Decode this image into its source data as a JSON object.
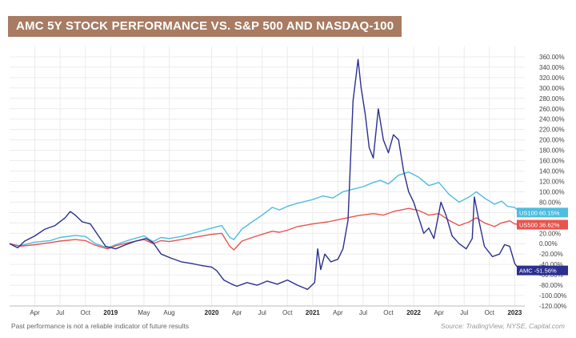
{
  "header": {
    "title": "AMC 5Y STOCK PERFORMANCE VS. S&P 500 AND NASDAQ-100"
  },
  "footer": {
    "disclaimer": "Past performance is not a reliable indicator of future results",
    "source": "Source: TradingView, NYSE, Capital.com"
  },
  "chart_data": {
    "type": "line",
    "title": "AMC 5Y STOCK PERFORMANCE VS. S&P 500 AND NASDAQ-100",
    "ylim": [
      -120,
      380
    ],
    "xlim": [
      2018.0,
      2023.1
    ],
    "y_ticks": [
      "360.00%",
      "340.00%",
      "320.00%",
      "300.00%",
      "280.00%",
      "260.00%",
      "240.00%",
      "220.00%",
      "200.00%",
      "180.00%",
      "160.00%",
      "140.00%",
      "120.00%",
      "100.00%",
      "80.00%",
      "60.00%",
      "40.00%",
      "20.00%",
      "0.00%",
      "-20.00%",
      "-40.00%",
      "-60.00%",
      "-80.00%",
      "-100.00%",
      "-120.00%"
    ],
    "y_tick_values": [
      360,
      340,
      320,
      300,
      280,
      260,
      240,
      220,
      200,
      180,
      160,
      140,
      120,
      100,
      80,
      60,
      40,
      20,
      0,
      -20,
      -40,
      -60,
      -80,
      -100,
      -120
    ],
    "x_ticks": [
      {
        "label": "Apr",
        "t": 2018.25,
        "bold": false
      },
      {
        "label": "Jul",
        "t": 2018.5,
        "bold": false
      },
      {
        "label": "Oct",
        "t": 2018.75,
        "bold": false
      },
      {
        "label": "2019",
        "t": 2019.0,
        "bold": true
      },
      {
        "label": "May",
        "t": 2019.33,
        "bold": false
      },
      {
        "label": "Aug",
        "t": 2019.58,
        "bold": false
      },
      {
        "label": "2020",
        "t": 2020.0,
        "bold": true
      },
      {
        "label": "Apr",
        "t": 2020.25,
        "bold": false
      },
      {
        "label": "Jul",
        "t": 2020.5,
        "bold": false
      },
      {
        "label": "Oct",
        "t": 2020.75,
        "bold": false
      },
      {
        "label": "2021",
        "t": 2021.0,
        "bold": true
      },
      {
        "label": "Apr",
        "t": 2021.25,
        "bold": false
      },
      {
        "label": "Jul",
        "t": 2021.5,
        "bold": false
      },
      {
        "label": "Oct",
        "t": 2021.75,
        "bold": false
      },
      {
        "label": "2022",
        "t": 2022.0,
        "bold": true
      },
      {
        "label": "Apr",
        "t": 2022.25,
        "bold": false
      },
      {
        "label": "Jul",
        "t": 2022.5,
        "bold": false
      },
      {
        "label": "Oct",
        "t": 2022.75,
        "bold": false
      },
      {
        "label": "2023",
        "t": 2023.0,
        "bold": true
      }
    ],
    "grid": true,
    "series": [
      {
        "name": "US100",
        "end_label": "US100 60.15%",
        "color": "#4dbde0",
        "points": [
          [
            2018.0,
            0
          ],
          [
            2018.1,
            -4
          ],
          [
            2018.25,
            3
          ],
          [
            2018.4,
            6
          ],
          [
            2018.5,
            12
          ],
          [
            2018.65,
            16
          ],
          [
            2018.75,
            14
          ],
          [
            2018.85,
            0
          ],
          [
            2018.97,
            -8
          ],
          [
            2019.05,
            -2
          ],
          [
            2019.2,
            8
          ],
          [
            2019.33,
            15
          ],
          [
            2019.42,
            4
          ],
          [
            2019.5,
            12
          ],
          [
            2019.58,
            10
          ],
          [
            2019.7,
            14
          ],
          [
            2019.85,
            22
          ],
          [
            2020.0,
            30
          ],
          [
            2020.1,
            35
          ],
          [
            2020.18,
            12
          ],
          [
            2020.22,
            8
          ],
          [
            2020.3,
            28
          ],
          [
            2020.4,
            42
          ],
          [
            2020.5,
            55
          ],
          [
            2020.6,
            70
          ],
          [
            2020.67,
            65
          ],
          [
            2020.75,
            72
          ],
          [
            2020.85,
            78
          ],
          [
            2021.0,
            85
          ],
          [
            2021.1,
            92
          ],
          [
            2021.2,
            88
          ],
          [
            2021.3,
            100
          ],
          [
            2021.4,
            105
          ],
          [
            2021.5,
            110
          ],
          [
            2021.6,
            118
          ],
          [
            2021.67,
            122
          ],
          [
            2021.75,
            115
          ],
          [
            2021.85,
            132
          ],
          [
            2021.95,
            138
          ],
          [
            2022.05,
            128
          ],
          [
            2022.15,
            112
          ],
          [
            2022.25,
            118
          ],
          [
            2022.35,
            95
          ],
          [
            2022.45,
            80
          ],
          [
            2022.55,
            90
          ],
          [
            2022.62,
            100
          ],
          [
            2022.7,
            88
          ],
          [
            2022.8,
            76
          ],
          [
            2022.87,
            82
          ],
          [
            2022.93,
            72
          ],
          [
            2023.0,
            70
          ],
          [
            2023.05,
            60
          ]
        ]
      },
      {
        "name": "US500",
        "end_label": "US500 36.62%",
        "color": "#e8544f",
        "points": [
          [
            2018.0,
            0
          ],
          [
            2018.1,
            -5
          ],
          [
            2018.25,
            -2
          ],
          [
            2018.4,
            2
          ],
          [
            2018.5,
            5
          ],
          [
            2018.65,
            8
          ],
          [
            2018.75,
            6
          ],
          [
            2018.85,
            -3
          ],
          [
            2018.97,
            -10
          ],
          [
            2019.05,
            -4
          ],
          [
            2019.2,
            3
          ],
          [
            2019.33,
            8
          ],
          [
            2019.42,
            0
          ],
          [
            2019.5,
            6
          ],
          [
            2019.58,
            4
          ],
          [
            2019.7,
            8
          ],
          [
            2019.85,
            13
          ],
          [
            2020.0,
            18
          ],
          [
            2020.1,
            20
          ],
          [
            2020.18,
            -5
          ],
          [
            2020.22,
            -12
          ],
          [
            2020.3,
            5
          ],
          [
            2020.4,
            12
          ],
          [
            2020.5,
            18
          ],
          [
            2020.6,
            24
          ],
          [
            2020.67,
            22
          ],
          [
            2020.75,
            26
          ],
          [
            2020.85,
            33
          ],
          [
            2021.0,
            38
          ],
          [
            2021.15,
            42
          ],
          [
            2021.3,
            48
          ],
          [
            2021.45,
            54
          ],
          [
            2021.6,
            58
          ],
          [
            2021.7,
            55
          ],
          [
            2021.8,
            62
          ],
          [
            2021.95,
            68
          ],
          [
            2022.05,
            64
          ],
          [
            2022.15,
            55
          ],
          [
            2022.25,
            58
          ],
          [
            2022.35,
            45
          ],
          [
            2022.45,
            35
          ],
          [
            2022.55,
            42
          ],
          [
            2022.62,
            50
          ],
          [
            2022.7,
            40
          ],
          [
            2022.8,
            33
          ],
          [
            2022.87,
            40
          ],
          [
            2022.95,
            44
          ],
          [
            2023.0,
            38
          ],
          [
            2023.05,
            36.6
          ]
        ]
      },
      {
        "name": "AMC",
        "end_label": "AMC -51.56%",
        "color": "#2b2f8f",
        "points": [
          [
            2018.0,
            0
          ],
          [
            2018.08,
            -8
          ],
          [
            2018.15,
            5
          ],
          [
            2018.25,
            15
          ],
          [
            2018.35,
            28
          ],
          [
            2018.45,
            35
          ],
          [
            2018.55,
            50
          ],
          [
            2018.6,
            62
          ],
          [
            2018.65,
            55
          ],
          [
            2018.72,
            42
          ],
          [
            2018.8,
            38
          ],
          [
            2018.88,
            15
          ],
          [
            2018.95,
            -5
          ],
          [
            2019.05,
            -10
          ],
          [
            2019.15,
            -2
          ],
          [
            2019.25,
            5
          ],
          [
            2019.35,
            10
          ],
          [
            2019.42,
            2
          ],
          [
            2019.5,
            -20
          ],
          [
            2019.6,
            -28
          ],
          [
            2019.7,
            -35
          ],
          [
            2019.8,
            -38
          ],
          [
            2019.9,
            -42
          ],
          [
            2020.0,
            -45
          ],
          [
            2020.05,
            -52
          ],
          [
            2020.12,
            -70
          ],
          [
            2020.2,
            -78
          ],
          [
            2020.25,
            -82
          ],
          [
            2020.35,
            -75
          ],
          [
            2020.45,
            -80
          ],
          [
            2020.55,
            -72
          ],
          [
            2020.65,
            -78
          ],
          [
            2020.75,
            -70
          ],
          [
            2020.85,
            -80
          ],
          [
            2020.95,
            -88
          ],
          [
            2021.02,
            -75
          ],
          [
            2021.05,
            -10
          ],
          [
            2021.08,
            -50
          ],
          [
            2021.12,
            -20
          ],
          [
            2021.18,
            -35
          ],
          [
            2021.25,
            -30
          ],
          [
            2021.3,
            -10
          ],
          [
            2021.35,
            45
          ],
          [
            2021.4,
            275
          ],
          [
            2021.45,
            355
          ],
          [
            2021.48,
            300
          ],
          [
            2021.52,
            250
          ],
          [
            2021.56,
            185
          ],
          [
            2021.6,
            165
          ],
          [
            2021.65,
            260
          ],
          [
            2021.7,
            200
          ],
          [
            2021.75,
            175
          ],
          [
            2021.8,
            210
          ],
          [
            2021.85,
            200
          ],
          [
            2021.9,
            140
          ],
          [
            2021.95,
            100
          ],
          [
            2022.0,
            80
          ],
          [
            2022.05,
            50
          ],
          [
            2022.1,
            20
          ],
          [
            2022.15,
            30
          ],
          [
            2022.2,
            10
          ],
          [
            2022.27,
            80
          ],
          [
            2022.32,
            55
          ],
          [
            2022.38,
            15
          ],
          [
            2022.45,
            0
          ],
          [
            2022.52,
            -10
          ],
          [
            2022.58,
            10
          ],
          [
            2022.6,
            90
          ],
          [
            2022.65,
            40
          ],
          [
            2022.7,
            -5
          ],
          [
            2022.78,
            -25
          ],
          [
            2022.85,
            -20
          ],
          [
            2022.9,
            -2
          ],
          [
            2022.95,
            -5
          ],
          [
            2023.0,
            -38
          ],
          [
            2023.05,
            -51.56
          ]
        ]
      }
    ]
  }
}
